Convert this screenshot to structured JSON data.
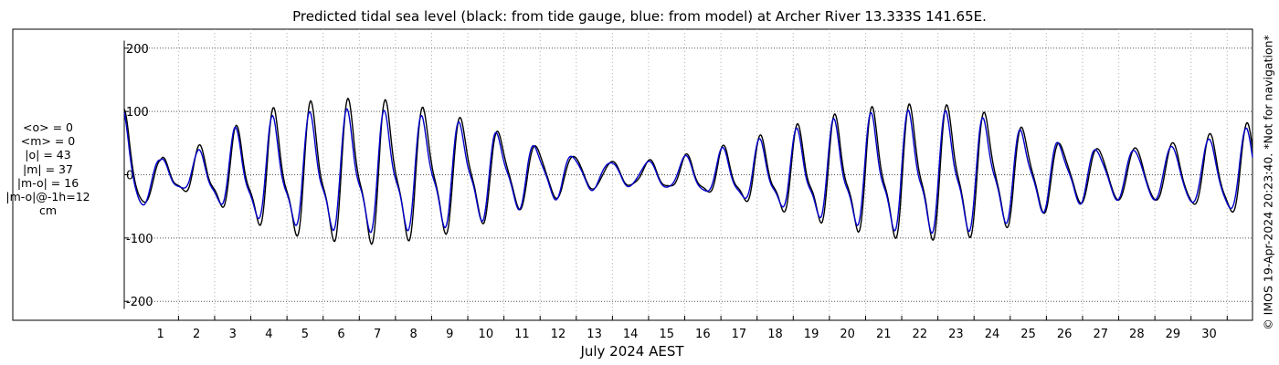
{
  "chart_data": {
    "type": "line",
    "title": "Predicted tidal sea level (black: from tide gauge, blue: from model) at Archer River 13.333S 141.65E.",
    "xlabel": "July 2024 AEST",
    "ylabel": "",
    "xlim": [
      0.0,
      31.2
    ],
    "ylim": [
      -230,
      230
    ],
    "yticks": [
      -200,
      -100,
      0,
      100,
      200
    ],
    "xticks": [
      1,
      2,
      3,
      4,
      5,
      6,
      7,
      8,
      9,
      10,
      11,
      12,
      13,
      14,
      15,
      16,
      17,
      18,
      19,
      20,
      21,
      22,
      23,
      24,
      25,
      26,
      27,
      28,
      29,
      30
    ],
    "grid": true,
    "series": [
      {
        "color": "#000000",
        "amplitude_envelope": [
          [
            0.0,
            90
          ],
          [
            1,
            20
          ],
          [
            2,
            35
          ],
          [
            3,
            60
          ],
          [
            4,
            85
          ],
          [
            5,
            95
          ],
          [
            6,
            100
          ],
          [
            7,
            102
          ],
          [
            8,
            95
          ],
          [
            9,
            85
          ],
          [
            10,
            70
          ],
          [
            11,
            50
          ],
          [
            12,
            35
          ],
          [
            13,
            22
          ],
          [
            14,
            18
          ],
          [
            15,
            22
          ],
          [
            16,
            30
          ],
          [
            17,
            42
          ],
          [
            18,
            55
          ],
          [
            19,
            70
          ],
          [
            20,
            82
          ],
          [
            21,
            92
          ],
          [
            22,
            95
          ],
          [
            23,
            95
          ],
          [
            24,
            85
          ],
          [
            25,
            65
          ],
          [
            26,
            45
          ],
          [
            27,
            40
          ],
          [
            28,
            40
          ],
          [
            29,
            45
          ],
          [
            30,
            55
          ],
          [
            31.2,
            70
          ]
        ],
        "phase_offset_hours": 0.8
      },
      {
        "color": "#0000cc",
        "amplitude_envelope": [
          [
            0.0,
            90
          ],
          [
            1,
            20
          ],
          [
            2,
            30
          ],
          [
            3,
            60
          ],
          [
            4,
            75
          ],
          [
            5,
            80
          ],
          [
            6,
            85
          ],
          [
            7,
            85
          ],
          [
            8,
            80
          ],
          [
            9,
            75
          ],
          [
            10,
            65
          ],
          [
            11,
            48
          ],
          [
            12,
            35
          ],
          [
            13,
            22
          ],
          [
            14,
            18
          ],
          [
            15,
            22
          ],
          [
            16,
            30
          ],
          [
            17,
            40
          ],
          [
            18,
            50
          ],
          [
            19,
            65
          ],
          [
            20,
            75
          ],
          [
            21,
            82
          ],
          [
            22,
            85
          ],
          [
            23,
            85
          ],
          [
            24,
            75
          ],
          [
            25,
            60
          ],
          [
            26,
            45
          ],
          [
            27,
            38
          ],
          [
            28,
            38
          ],
          [
            29,
            42
          ],
          [
            30,
            50
          ],
          [
            31.2,
            65
          ]
        ],
        "phase_offset_hours": 0.0
      }
    ]
  },
  "stats": {
    "mean_obs": "<o> = 0",
    "mean_model": "<m> = 0",
    "abs_obs": "|o| = 43",
    "abs_model": "|m| = 37",
    "abs_diff": "|m-o| = 16",
    "abs_diff_lag": "|m-o|@-1h=12",
    "unit": "cm"
  },
  "copyright": "© IMOS 19-Apr-2024 20:23:40. *Not for navigation*"
}
